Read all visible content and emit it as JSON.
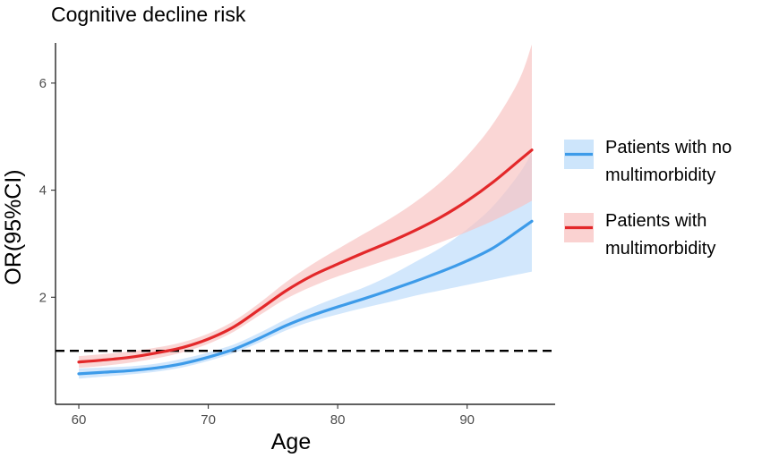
{
  "chart_data": {
    "type": "line",
    "title": "Cognitive decline risk",
    "xlabel": "Age",
    "ylabel": "OR(95%CI)",
    "xlim": [
      58.2,
      96.8
    ],
    "ylim": [
      0.0,
      6.75
    ],
    "xticks": [
      60,
      70,
      80,
      90
    ],
    "yticks": [
      2,
      4,
      6
    ],
    "reference_line": {
      "y": 1,
      "style": "dashed",
      "color": "#000000"
    },
    "legend_position": "right",
    "series": [
      {
        "name": "Patients with no multimorbidity",
        "legend_lines": [
          "Patients with no",
          "multimorbidity"
        ],
        "line_color": "#3d9be9",
        "band_color": "#bcdcfa",
        "x": [
          60,
          62,
          64,
          66,
          68,
          70,
          72,
          74,
          76,
          78,
          80,
          82,
          84,
          86,
          88,
          90,
          92,
          94,
          95
        ],
        "y": [
          0.57,
          0.6,
          0.63,
          0.68,
          0.76,
          0.88,
          1.03,
          1.24,
          1.47,
          1.66,
          1.82,
          1.97,
          2.13,
          2.3,
          2.48,
          2.68,
          2.92,
          3.25,
          3.42
        ],
        "lower": [
          0.48,
          0.52,
          0.56,
          0.61,
          0.69,
          0.81,
          0.96,
          1.16,
          1.38,
          1.55,
          1.68,
          1.8,
          1.91,
          2.03,
          2.13,
          2.23,
          2.33,
          2.43,
          2.48
        ],
        "upper": [
          0.67,
          0.69,
          0.71,
          0.76,
          0.85,
          0.97,
          1.12,
          1.34,
          1.59,
          1.81,
          2.0,
          2.18,
          2.4,
          2.66,
          2.93,
          3.27,
          3.7,
          4.3,
          4.7
        ]
      },
      {
        "name": "Patients with multimorbidity",
        "legend_lines": [
          "Patients with",
          "multimorbidity"
        ],
        "line_color": "#e3282a",
        "band_color": "#f8c3c1",
        "x": [
          60,
          62,
          64,
          66,
          68,
          70,
          72,
          74,
          76,
          78,
          80,
          82,
          84,
          86,
          88,
          90,
          92,
          94,
          95
        ],
        "y": [
          0.79,
          0.83,
          0.88,
          0.96,
          1.06,
          1.22,
          1.45,
          1.78,
          2.12,
          2.4,
          2.62,
          2.83,
          3.03,
          3.25,
          3.5,
          3.8,
          4.15,
          4.55,
          4.75
        ],
        "lower": [
          0.68,
          0.72,
          0.78,
          0.86,
          0.97,
          1.13,
          1.36,
          1.67,
          1.97,
          2.2,
          2.39,
          2.55,
          2.71,
          2.86,
          3.03,
          3.22,
          3.43,
          3.67,
          3.8
        ],
        "upper": [
          0.9,
          0.94,
          0.99,
          1.06,
          1.16,
          1.32,
          1.56,
          1.9,
          2.28,
          2.61,
          2.9,
          3.18,
          3.46,
          3.78,
          4.16,
          4.64,
          5.24,
          6.05,
          6.72
        ]
      }
    ]
  }
}
